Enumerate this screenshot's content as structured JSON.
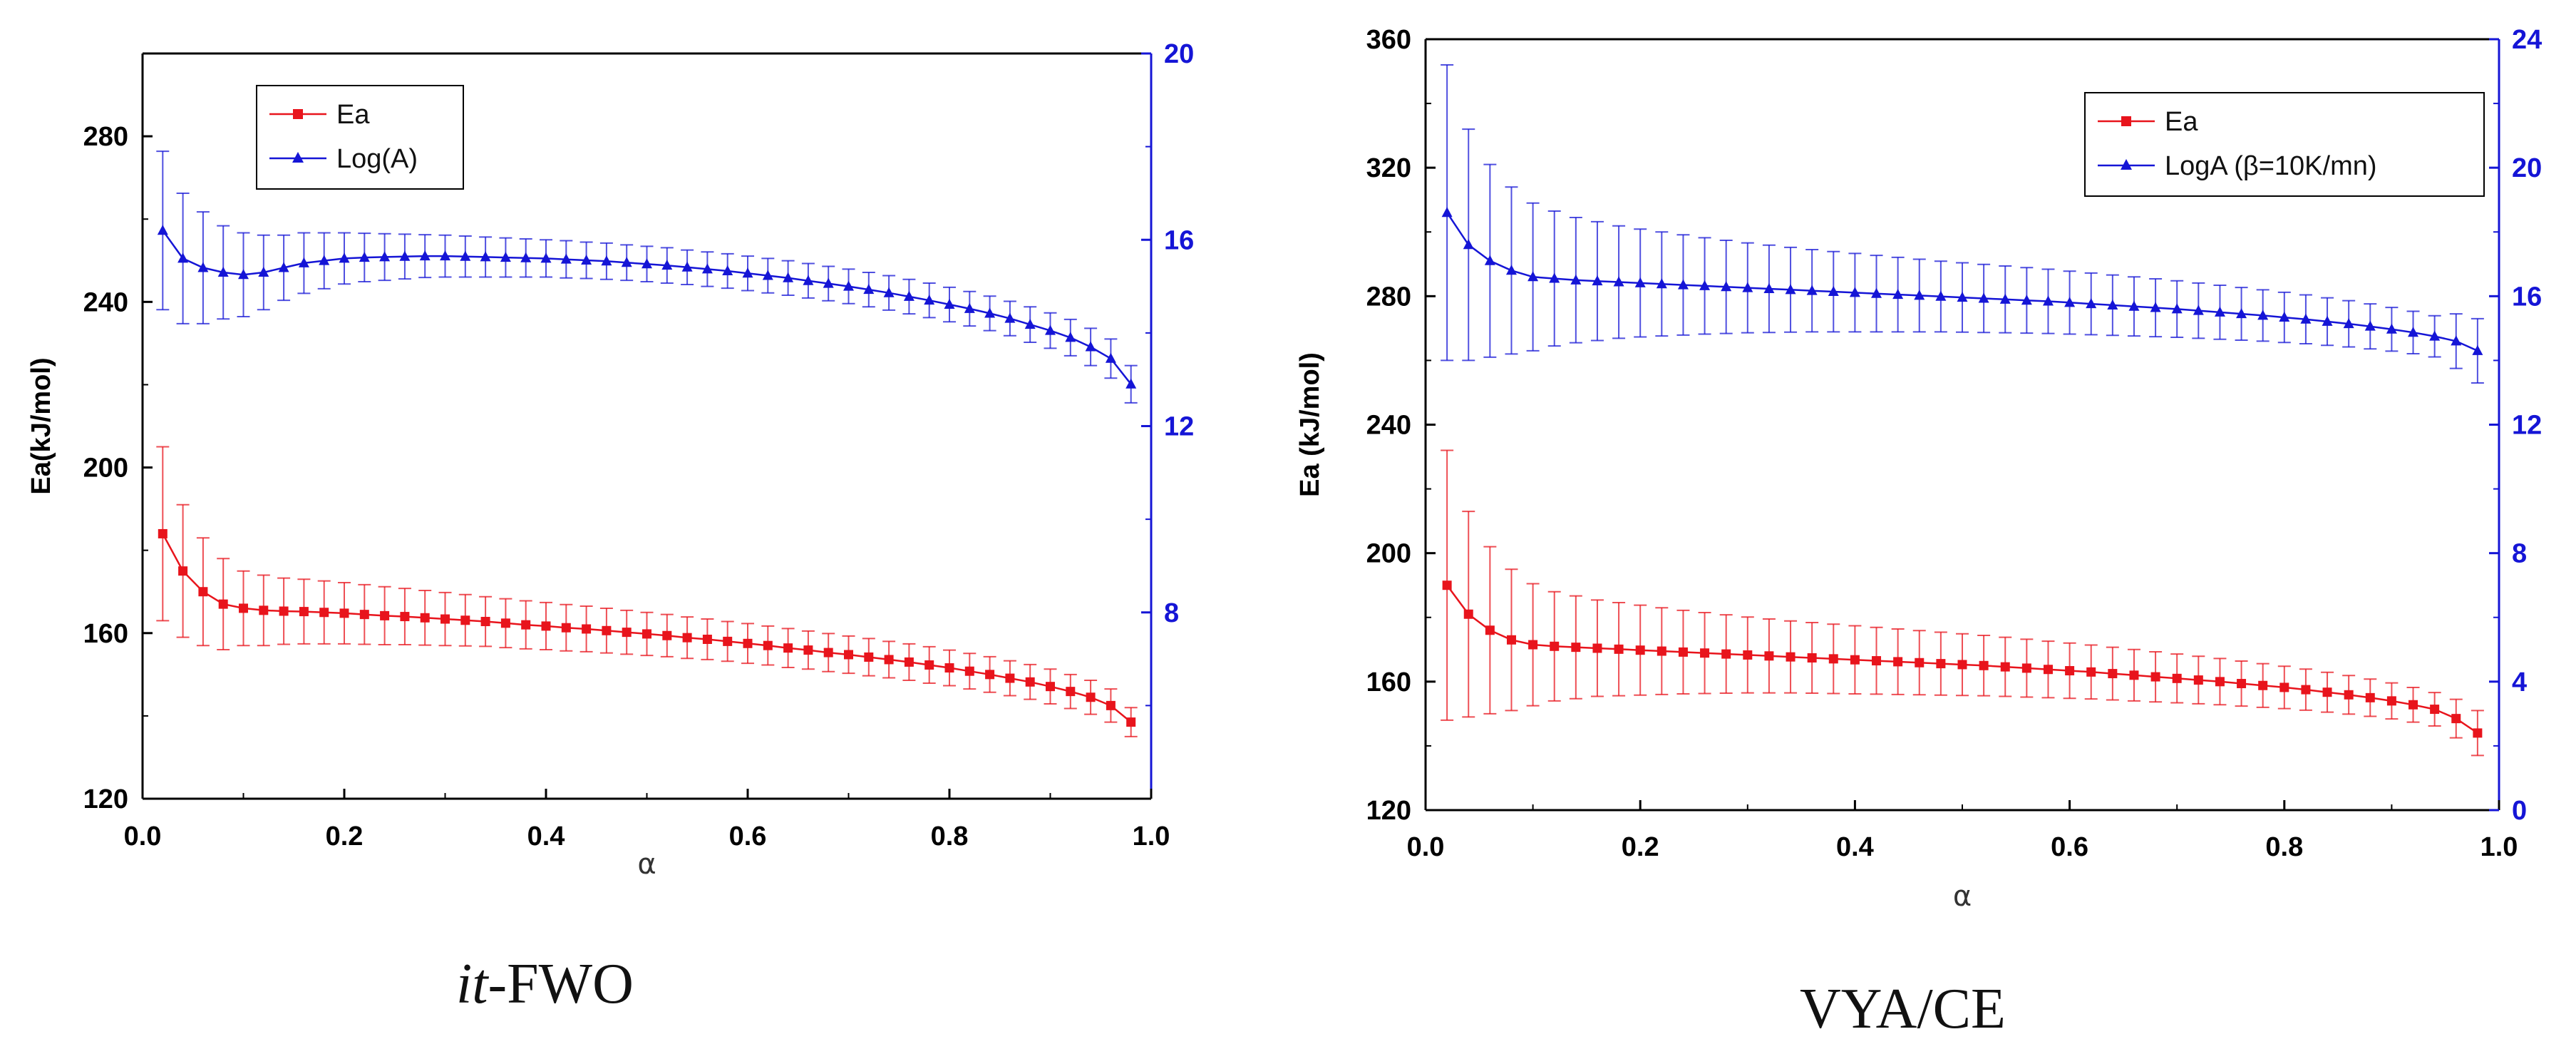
{
  "colors": {
    "ea": "#e8141c",
    "logA": "#1515d6",
    "axis": "#000000",
    "right_axis": "#1515d6"
  },
  "captions": {
    "left_prefix": "it",
    "left_suffix": "-FWO",
    "right": "VYA/CE"
  },
  "chart_data": [
    {
      "type": "line",
      "xlabel": "α",
      "ylabel": "Ea(kJ/mol)",
      "xlim": [
        0.0,
        1.0
      ],
      "ylim": [
        120,
        300
      ],
      "y2lim": [
        4,
        20
      ],
      "xticks": [
        "0.0",
        "0.2",
        "0.4",
        "0.6",
        "0.8",
        "1.0"
      ],
      "yticks": [
        "120",
        "160",
        "200",
        "240",
        "280"
      ],
      "y2ticks": [
        "8",
        "12",
        "16",
        "20"
      ],
      "legend": {
        "placement": "top-left",
        "entries": [
          "Ea",
          "Log(A)"
        ]
      },
      "x": [
        0.02,
        0.04,
        0.06,
        0.08,
        0.1,
        0.12,
        0.14,
        0.16,
        0.18,
        0.2,
        0.22,
        0.24,
        0.26,
        0.28,
        0.3,
        0.32,
        0.34,
        0.36,
        0.38,
        0.4,
        0.42,
        0.44,
        0.46,
        0.48,
        0.5,
        0.52,
        0.54,
        0.56,
        0.58,
        0.6,
        0.62,
        0.64,
        0.66,
        0.68,
        0.7,
        0.72,
        0.74,
        0.76,
        0.78,
        0.8,
        0.82,
        0.84,
        0.86,
        0.88,
        0.9,
        0.92,
        0.94,
        0.96,
        0.98
      ],
      "series": [
        {
          "name": "Ea",
          "axis": "left",
          "marker": "square",
          "values": [
            184,
            175,
            170,
            167,
            166,
            165.5,
            165.3,
            165.2,
            165,
            164.8,
            164.5,
            164.2,
            164,
            163.7,
            163.4,
            163.1,
            162.8,
            162.4,
            162,
            161.7,
            161.3,
            161,
            160.6,
            160.2,
            159.8,
            159.4,
            158.9,
            158.5,
            158,
            157.5,
            157,
            156.4,
            155.9,
            155.3,
            154.8,
            154.2,
            153.6,
            153,
            152.3,
            151.6,
            150.8,
            150,
            149.1,
            148.2,
            147.1,
            145.9,
            144.5,
            142.5,
            138.5
          ],
          "errors": [
            21,
            16,
            13,
            11,
            9,
            8.5,
            8,
            7.8,
            7.6,
            7.4,
            7.2,
            7,
            6.8,
            6.6,
            6.4,
            6.2,
            6,
            5.9,
            5.8,
            5.7,
            5.6,
            5.5,
            5.4,
            5.3,
            5.2,
            5.1,
            5,
            4.9,
            4.8,
            4.8,
            4.7,
            4.7,
            4.6,
            4.6,
            4.5,
            4.5,
            4.4,
            4.4,
            4.4,
            4.3,
            4.3,
            4.3,
            4.2,
            4.2,
            4.2,
            4.1,
            4.1,
            4,
            3.5
          ]
        },
        {
          "name": "Log(A)",
          "axis": "right",
          "marker": "triangle",
          "values": [
            16.2,
            15.6,
            15.4,
            15.3,
            15.25,
            15.3,
            15.4,
            15.5,
            15.55,
            15.6,
            15.62,
            15.63,
            15.64,
            15.65,
            15.65,
            15.64,
            15.63,
            15.62,
            15.61,
            15.6,
            15.58,
            15.56,
            15.54,
            15.51,
            15.48,
            15.45,
            15.41,
            15.37,
            15.33,
            15.28,
            15.23,
            15.18,
            15.12,
            15.06,
            15,
            14.93,
            14.86,
            14.78,
            14.7,
            14.61,
            14.52,
            14.42,
            14.31,
            14.18,
            14.05,
            13.9,
            13.7,
            13.45,
            12.9
          ],
          "errors": [
            1.7,
            1.4,
            1.2,
            1,
            0.9,
            0.8,
            0.7,
            0.65,
            0.6,
            0.55,
            0.52,
            0.5,
            0.48,
            0.46,
            0.45,
            0.44,
            0.43,
            0.42,
            0.41,
            0.4,
            0.4,
            0.39,
            0.39,
            0.38,
            0.38,
            0.38,
            0.37,
            0.37,
            0.37,
            0.37,
            0.37,
            0.37,
            0.37,
            0.37,
            0.37,
            0.37,
            0.37,
            0.37,
            0.37,
            0.37,
            0.37,
            0.37,
            0.37,
            0.38,
            0.38,
            0.39,
            0.4,
            0.42,
            0.4
          ]
        }
      ]
    },
    {
      "type": "line",
      "xlabel": "α",
      "ylabel": "Ea (kJ/mol)",
      "xlim": [
        0.0,
        1.0
      ],
      "ylim": [
        120,
        360
      ],
      "y2lim": [
        0,
        24
      ],
      "xticks": [
        "0.0",
        "0.2",
        "0.4",
        "0.6",
        "0.8",
        "1.0"
      ],
      "yticks": [
        "120",
        "160",
        "200",
        "240",
        "280",
        "320",
        "360"
      ],
      "y2ticks": [
        "0",
        "4",
        "8",
        "12",
        "16",
        "20",
        "24"
      ],
      "legend": {
        "placement": "top-right",
        "entries": [
          "Ea",
          "LogA (β=10K/mn)"
        ]
      },
      "x": [
        0.02,
        0.04,
        0.06,
        0.08,
        0.1,
        0.12,
        0.14,
        0.16,
        0.18,
        0.2,
        0.22,
        0.24,
        0.26,
        0.28,
        0.3,
        0.32,
        0.34,
        0.36,
        0.38,
        0.4,
        0.42,
        0.44,
        0.46,
        0.48,
        0.5,
        0.52,
        0.54,
        0.56,
        0.58,
        0.6,
        0.62,
        0.64,
        0.66,
        0.68,
        0.7,
        0.72,
        0.74,
        0.76,
        0.78,
        0.8,
        0.82,
        0.84,
        0.86,
        0.88,
        0.9,
        0.92,
        0.94,
        0.96,
        0.98
      ],
      "series": [
        {
          "name": "Ea",
          "axis": "left",
          "marker": "square",
          "values": [
            190,
            181,
            176,
            173,
            171.5,
            171,
            170.7,
            170.4,
            170.1,
            169.8,
            169.5,
            169.2,
            168.9,
            168.6,
            168.3,
            168,
            167.7,
            167.4,
            167.1,
            166.8,
            166.5,
            166.2,
            165.9,
            165.6,
            165.3,
            165,
            164.6,
            164.2,
            163.8,
            163.4,
            163,
            162.5,
            162,
            161.5,
            161,
            160.5,
            160,
            159.4,
            158.8,
            158.2,
            157.5,
            156.7,
            155.9,
            155,
            154,
            152.8,
            151.4,
            148.5,
            144
          ],
          "errors": [
            42,
            32,
            26,
            22,
            19,
            17,
            16,
            15,
            14.5,
            14,
            13.5,
            13,
            12.6,
            12.2,
            11.8,
            11.5,
            11.2,
            11,
            10.8,
            10.6,
            10.4,
            10.2,
            10,
            9.8,
            9.6,
            9.4,
            9.2,
            9,
            8.8,
            8.6,
            8.4,
            8.2,
            8,
            7.8,
            7.6,
            7.4,
            7.2,
            7,
            6.8,
            6.6,
            6.4,
            6.2,
            6,
            5.8,
            5.6,
            5.4,
            5.2,
            6,
            7
          ]
        },
        {
          "name": "LogA (β=10K/mn)",
          "axis": "right",
          "marker": "triangle",
          "values": [
            18.6,
            17.6,
            17.1,
            16.8,
            16.6,
            16.55,
            16.5,
            16.47,
            16.44,
            16.41,
            16.38,
            16.35,
            16.32,
            16.29,
            16.26,
            16.23,
            16.2,
            16.17,
            16.14,
            16.11,
            16.08,
            16.05,
            16.02,
            15.99,
            15.96,
            15.93,
            15.9,
            15.87,
            15.84,
            15.8,
            15.76,
            15.72,
            15.68,
            15.64,
            15.6,
            15.55,
            15.5,
            15.45,
            15.4,
            15.34,
            15.28,
            15.21,
            15.14,
            15.06,
            14.97,
            14.87,
            14.75,
            14.6,
            14.3
          ],
          "errors": [
            4.6,
            3.6,
            3,
            2.6,
            2.3,
            2.1,
            1.95,
            1.85,
            1.75,
            1.68,
            1.62,
            1.56,
            1.5,
            1.45,
            1.4,
            1.36,
            1.32,
            1.28,
            1.25,
            1.22,
            1.19,
            1.16,
            1.13,
            1.1,
            1.08,
            1.06,
            1.04,
            1.02,
            1,
            0.98,
            0.96,
            0.94,
            0.92,
            0.9,
            0.88,
            0.86,
            0.84,
            0.82,
            0.8,
            0.78,
            0.76,
            0.74,
            0.72,
            0.7,
            0.68,
            0.66,
            0.64,
            0.85,
            1
          ]
        }
      ]
    }
  ]
}
